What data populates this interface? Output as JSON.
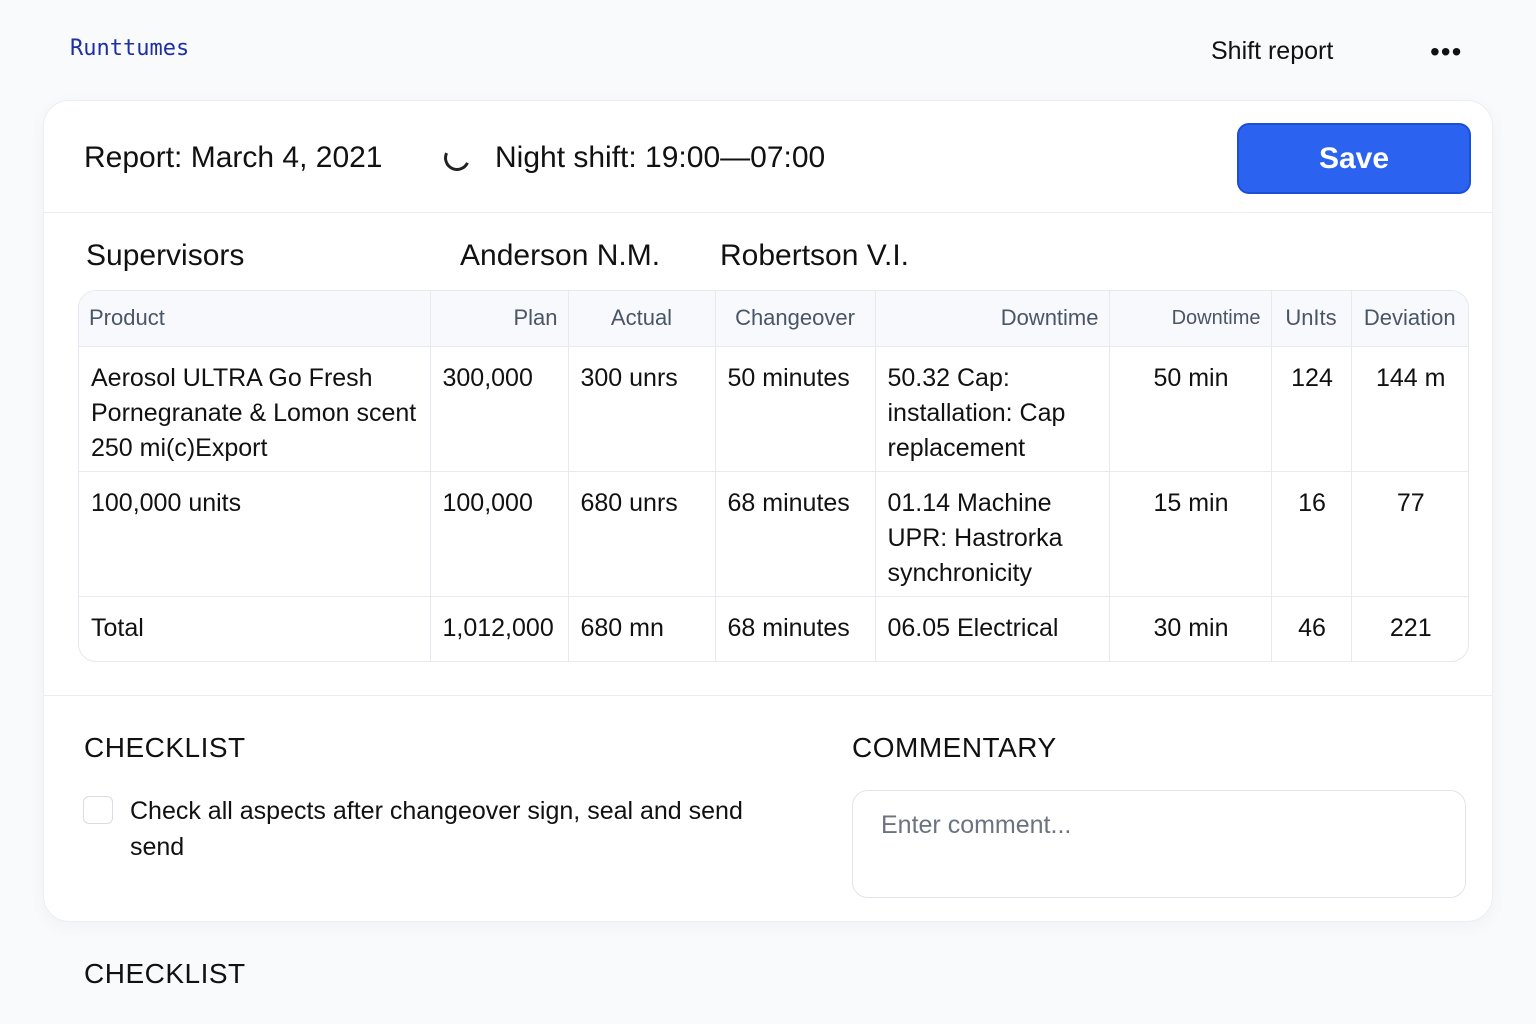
{
  "app": {
    "brand": "Runttumes",
    "title": "Shift report",
    "more_icon": "more-horizontal-icon",
    "more_label": "•••"
  },
  "report": {
    "title": "Report: March 4, 2021",
    "shift": "Night shift: 19:00—07:00",
    "save_label": "Save",
    "accent": "#2b63f0"
  },
  "supervisors": {
    "label": "Supervisors",
    "names": [
      "Anderson N.M.",
      "Robertson V.I."
    ]
  },
  "table": {
    "headers": [
      "Product",
      "Plan",
      "Actual",
      "Changeover",
      "Downtime",
      "Downtime",
      "UnIts",
      "Deviation"
    ],
    "rows": [
      [
        "Aerosol ULTRA Go Fresh Pornegranate & Lomon scent 250 mi(c)Export",
        "300,000",
        "300 unrs",
        "50 minutes",
        "50.32 Cap: installation:  Cap replacement",
        "50 min",
        "124",
        "144 m"
      ],
      [
        "100,000 units",
        "100,000",
        "680 unrs",
        "68 minutes",
        "01.14   Machine UPR: Hastrorka synchronicity",
        "15 min",
        "16",
        "77"
      ],
      [
        "Total",
        "1,012,000",
        "680 mn",
        "68 minutes",
        "06.05  Electrical",
        "30 min",
        "46",
        "221"
      ]
    ]
  },
  "checklist": {
    "title": "CHECKLIST",
    "items": [
      {
        "label": "Check all aspects after changeover sign, seal and send send",
        "checked": false
      }
    ]
  },
  "commentary": {
    "title": "COMMENTARY",
    "placeholder": "Enter comment..."
  },
  "footer": {
    "section_title": "CHECKLIST"
  }
}
